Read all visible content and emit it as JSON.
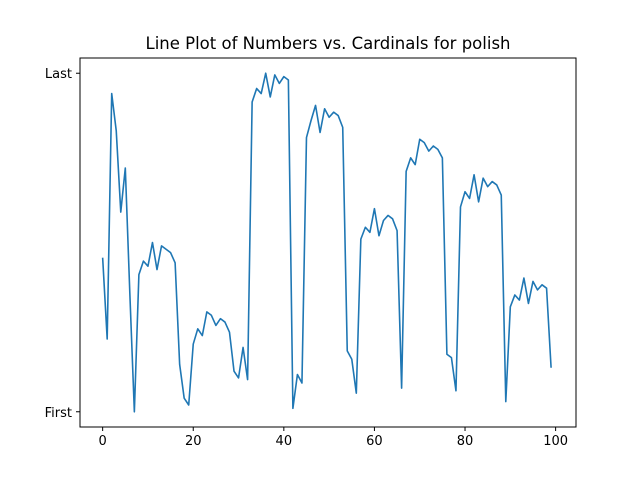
{
  "chart_data": {
    "type": "line",
    "title": "Line Plot of Numbers vs. Cardinals for polish",
    "xlabel": "",
    "ylabel": "",
    "xlim": [
      -5,
      104.5
    ],
    "ylim": [
      -0.045,
      1.045
    ],
    "x_ticks": [
      0,
      20,
      40,
      60,
      80,
      100
    ],
    "x_tick_labels": [
      "0",
      "20",
      "40",
      "60",
      "80",
      "100"
    ],
    "y_ticks": [
      0,
      1
    ],
    "y_tick_labels": [
      "First",
      "Last"
    ],
    "grid": false,
    "line_color": "#1f77b4",
    "series": [
      {
        "x": [
          0,
          1,
          2,
          3,
          4,
          5,
          6,
          7,
          8,
          9,
          10,
          11,
          12,
          13,
          14,
          15,
          16,
          17,
          18,
          19,
          20,
          21,
          22,
          23,
          24,
          25,
          26,
          27,
          28,
          29,
          30,
          31,
          32,
          33,
          34,
          35,
          36,
          37,
          38,
          39,
          40,
          41,
          42,
          43,
          44,
          45,
          46,
          47,
          48,
          49,
          50,
          51,
          52,
          53,
          54,
          55,
          56,
          57,
          58,
          59,
          60,
          61,
          62,
          63,
          64,
          65,
          66,
          67,
          68,
          69,
          70,
          71,
          72,
          73,
          74,
          75,
          76,
          77,
          78,
          79,
          80,
          81,
          82,
          83,
          84,
          85,
          86,
          87,
          88,
          89,
          90,
          91,
          92,
          93,
          94,
          95,
          96,
          97,
          98,
          99
        ],
        "values": [
          0.455,
          0.215,
          0.94,
          0.83,
          0.59,
          0.72,
          0.35,
          0.0,
          0.405,
          0.445,
          0.43,
          0.5,
          0.42,
          0.49,
          0.48,
          0.47,
          0.44,
          0.14,
          0.04,
          0.02,
          0.2,
          0.245,
          0.225,
          0.295,
          0.285,
          0.255,
          0.275,
          0.265,
          0.235,
          0.12,
          0.1,
          0.19,
          0.095,
          0.915,
          0.955,
          0.94,
          1.0,
          0.93,
          0.995,
          0.97,
          0.99,
          0.98,
          0.01,
          0.11,
          0.085,
          0.81,
          0.86,
          0.905,
          0.825,
          0.895,
          0.87,
          0.885,
          0.875,
          0.84,
          0.18,
          0.155,
          0.055,
          0.51,
          0.545,
          0.53,
          0.6,
          0.52,
          0.565,
          0.58,
          0.57,
          0.535,
          0.07,
          0.71,
          0.75,
          0.73,
          0.805,
          0.795,
          0.77,
          0.785,
          0.775,
          0.75,
          0.17,
          0.16,
          0.062,
          0.605,
          0.65,
          0.63,
          0.7,
          0.62,
          0.69,
          0.665,
          0.68,
          0.67,
          0.64,
          0.03,
          0.31,
          0.345,
          0.33,
          0.395,
          0.32,
          0.385,
          0.36,
          0.375,
          0.365,
          0.13
        ]
      }
    ]
  }
}
